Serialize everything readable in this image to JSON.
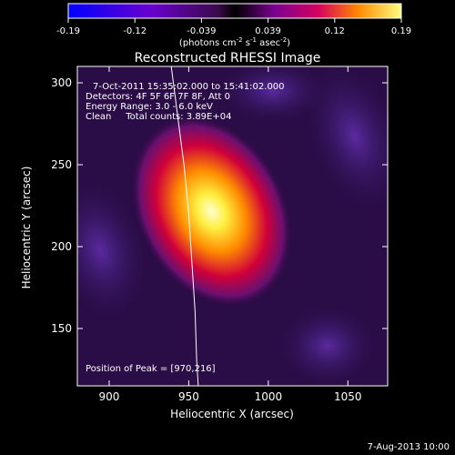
{
  "chart_data": {
    "type": "heatmap",
    "title": "Reconstructed RHESSI Image",
    "xlabel": "Heliocentric X (arcsec)",
    "ylabel": "Heliocentric Y (arcsec)",
    "xlim": [
      880,
      1075
    ],
    "ylim": [
      115,
      310
    ],
    "x_ticks": [
      900,
      950,
      1000,
      1050
    ],
    "y_ticks": [
      150,
      200,
      250,
      300
    ],
    "colorbar": {
      "range": [
        -0.19,
        0.19
      ],
      "ticks": [
        "-0.19",
        "-0.12",
        "-0.039",
        "0.039",
        "0.12",
        "0.19"
      ],
      "unit_prefix": "(photons cm",
      "unit_sup1": "-2",
      "unit_mid1": " s",
      "unit_sup2": "-1",
      "unit_mid2": " asec",
      "unit_sup3": "-2",
      "unit_suffix": ")"
    },
    "annotations": [
      "7-Oct-2011 15:35:02.000 to 15:41:02.000",
      "Detectors: 4F 5F 6F 7F 8F, Att 0",
      "Energy Range: 3.0 - 6.0 keV",
      "Clean     Total counts: 3.89E+04"
    ],
    "peak_label": "Position of Peak = [970,216]",
    "peak": [
      970,
      216
    ],
    "footer_date": "7-Aug-2013 10:00",
    "source_peak_value": 0.19,
    "limb_points": [
      [
        939,
        310
      ],
      [
        943,
        280
      ],
      [
        947,
        250
      ],
      [
        950,
        220
      ],
      [
        952,
        190
      ],
      [
        954,
        160
      ],
      [
        955,
        130
      ],
      [
        956,
        115
      ]
    ]
  }
}
